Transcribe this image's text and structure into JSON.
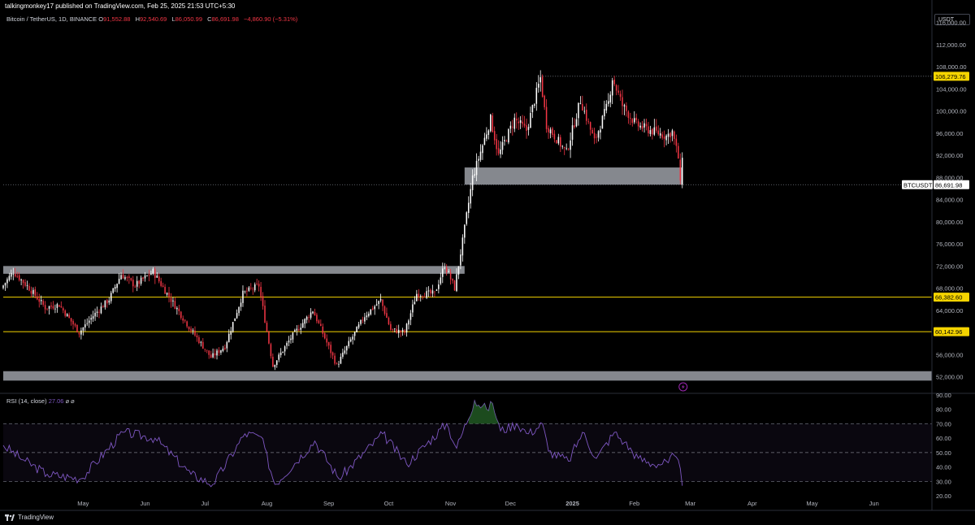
{
  "header": {
    "publisher": "talkingmonkey17 published on TradingView.com, Feb 25, 2025 21:53 UTC+5:30",
    "symbol_desc": "Bitcoin / TetherUS, 1D, BINANCE",
    "ohlc": [
      {
        "k": "O",
        "v": "91,552.88"
      },
      {
        "k": "H",
        "v": "92,540.69"
      },
      {
        "k": "L",
        "v": "86,050.99"
      },
      {
        "k": "C",
        "v": "86,691.98"
      }
    ],
    "change": "−4,860.90 (−5.31%)"
  },
  "currency_button": "USDT",
  "colors": {
    "up": "#ffffff",
    "down": "#f23645",
    "zone": "#b2b5be",
    "level": "#f5d400",
    "rsi": "#7e57c2",
    "rsi_overbought": "#2e7d32",
    "grid_dash": "#434651"
  },
  "price_axis": {
    "ticks": [
      "116,000.00",
      "112,000.00",
      "108,000.00",
      "104,000.00",
      "100,000.00",
      "96,000.00",
      "92,000.00",
      "88,000.00",
      "84,000.00",
      "80,000.00",
      "76,000.00",
      "72,000.00",
      "68,000.00",
      "64,000.00",
      "60,000.00",
      "56,000.00",
      "52,000.00"
    ],
    "tick_values": [
      116000,
      112000,
      108000,
      104000,
      100000,
      96000,
      92000,
      88000,
      84000,
      80000,
      76000,
      72000,
      68000,
      64000,
      60000,
      56000,
      52000
    ],
    "range": [
      49000,
      118000
    ]
  },
  "price_tags": [
    {
      "label": "106,279.76",
      "value": 106279.76,
      "style": "yellow"
    },
    {
      "label": "86,691.98",
      "value": 86691.98,
      "style": "white",
      "symbol": "BTCUSDT"
    },
    {
      "label": "66,382.60",
      "value": 66382.6,
      "style": "yellow"
    },
    {
      "label": "60,142.96",
      "value": 60142.96,
      "style": "yellow"
    }
  ],
  "zones": [
    {
      "from_date": "2024-03-22",
      "to_date": "2024-11-08",
      "low": 70600,
      "high": 72000
    },
    {
      "from_date": "2024-11-08",
      "to_date": "2025-02-25",
      "low": 86700,
      "high": 89800
    },
    {
      "from_date": "2024-03-22",
      "to_date": "2025-06-30",
      "low": 51300,
      "high": 53000
    }
  ],
  "levels": [
    66382.6,
    60142.96
  ],
  "resistance_line": {
    "value": 106279.76,
    "from_date": "2024-12-16"
  },
  "x_axis": {
    "labels": [
      {
        "text": "May",
        "date": "2024-05-01"
      },
      {
        "text": "Jun",
        "date": "2024-06-01"
      },
      {
        "text": "Jul",
        "date": "2024-07-01"
      },
      {
        "text": "Aug",
        "date": "2024-08-01"
      },
      {
        "text": "Sep",
        "date": "2024-09-01"
      },
      {
        "text": "Oct",
        "date": "2024-10-01"
      },
      {
        "text": "Nov",
        "date": "2024-11-01"
      },
      {
        "text": "Dec",
        "date": "2024-12-01"
      },
      {
        "text": "2025",
        "date": "2025-01-01",
        "bold": true
      },
      {
        "text": "Feb",
        "date": "2025-02-01"
      },
      {
        "text": "Mar",
        "date": "2025-03-01"
      },
      {
        "text": "Apr",
        "date": "2025-04-01"
      },
      {
        "text": "May",
        "date": "2025-05-01"
      },
      {
        "text": "Jun",
        "date": "2025-06-01"
      }
    ]
  },
  "chart_data": {
    "type": "candlestick",
    "x_date_range": [
      "2024-03-22",
      "2025-06-30"
    ],
    "anchors": [
      [
        "2024-03-22",
        68000
      ],
      [
        "2024-03-28",
        71000
      ],
      [
        "2024-04-05",
        68000
      ],
      [
        "2024-04-13",
        64500
      ],
      [
        "2024-04-20",
        65000
      ],
      [
        "2024-04-30",
        60000
      ],
      [
        "2024-05-07",
        63000
      ],
      [
        "2024-05-15",
        66000
      ],
      [
        "2024-05-21",
        70500
      ],
      [
        "2024-05-28",
        68500
      ],
      [
        "2024-06-06",
        71000
      ],
      [
        "2024-06-13",
        67000
      ],
      [
        "2024-06-24",
        61000
      ],
      [
        "2024-07-05",
        55500
      ],
      [
        "2024-07-12",
        57500
      ],
      [
        "2024-07-21",
        67000
      ],
      [
        "2024-07-29",
        68500
      ],
      [
        "2024-08-05",
        54000
      ],
      [
        "2024-08-14",
        59000
      ],
      [
        "2024-08-25",
        64000
      ],
      [
        "2024-09-06",
        54000
      ],
      [
        "2024-09-12",
        58000
      ],
      [
        "2024-09-20",
        63000
      ],
      [
        "2024-09-28",
        65800
      ],
      [
        "2024-10-03",
        60500
      ],
      [
        "2024-10-10",
        60000
      ],
      [
        "2024-10-16",
        67000
      ],
      [
        "2024-10-25",
        67000
      ],
      [
        "2024-10-30",
        72200
      ],
      [
        "2024-11-04",
        68000
      ],
      [
        "2024-11-08",
        76500
      ],
      [
        "2024-11-13",
        88000
      ],
      [
        "2024-11-22",
        98500
      ],
      [
        "2024-11-26",
        92000
      ],
      [
        "2024-12-04",
        98500
      ],
      [
        "2024-12-10",
        96500
      ],
      [
        "2024-12-17",
        106000
      ],
      [
        "2024-12-20",
        97500
      ],
      [
        "2024-12-30",
        92500
      ],
      [
        "2025-01-06",
        102000
      ],
      [
        "2025-01-13",
        94500
      ],
      [
        "2025-01-20",
        101500
      ],
      [
        "2025-01-22",
        106000
      ],
      [
        "2025-01-27",
        101000
      ],
      [
        "2025-02-03",
        97500
      ],
      [
        "2025-02-10",
        96500
      ],
      [
        "2025-02-18",
        95500
      ],
      [
        "2025-02-21",
        96300
      ],
      [
        "2025-02-24",
        91550
      ],
      [
        "2025-02-25",
        86692
      ]
    ],
    "last_candle": {
      "date": "2025-02-25",
      "open": 91552.88,
      "high": 92540.69,
      "low": 86050.99,
      "close": 86691.98
    }
  },
  "rsi": {
    "label": "RSI (14, close)",
    "value": "27.06",
    "icons": "⌀ ⌀",
    "ticks": [
      "90.00",
      "80.00",
      "70.00",
      "60.00",
      "50.00",
      "40.00",
      "30.00",
      "20.00"
    ],
    "tick_values": [
      90,
      80,
      70,
      60,
      50,
      40,
      30,
      20
    ],
    "bands": [
      70,
      50,
      30
    ],
    "range": [
      19,
      91
    ],
    "anchors": [
      [
        "2024-03-22",
        55
      ],
      [
        "2024-04-01",
        45
      ],
      [
        "2024-04-13",
        35
      ],
      [
        "2024-04-30",
        32
      ],
      [
        "2024-05-21",
        64
      ],
      [
        "2024-06-06",
        60
      ],
      [
        "2024-06-24",
        35
      ],
      [
        "2024-07-05",
        28
      ],
      [
        "2024-07-21",
        63
      ],
      [
        "2024-07-29",
        61
      ],
      [
        "2024-08-05",
        28
      ],
      [
        "2024-08-25",
        58
      ],
      [
        "2024-09-06",
        32
      ],
      [
        "2024-09-28",
        63
      ],
      [
        "2024-10-10",
        42
      ],
      [
        "2024-10-30",
        70
      ],
      [
        "2024-11-04",
        53
      ],
      [
        "2024-11-13",
        86
      ],
      [
        "2024-11-19",
        80
      ],
      [
        "2024-11-22",
        84
      ],
      [
        "2024-11-26",
        65
      ],
      [
        "2024-12-04",
        70
      ],
      [
        "2024-12-10",
        63
      ],
      [
        "2024-12-17",
        70
      ],
      [
        "2024-12-20",
        51
      ],
      [
        "2024-12-30",
        44
      ],
      [
        "2025-01-06",
        64
      ],
      [
        "2025-01-13",
        46
      ],
      [
        "2025-01-22",
        64
      ],
      [
        "2025-01-27",
        57
      ],
      [
        "2025-02-03",
        46
      ],
      [
        "2025-02-10",
        42
      ],
      [
        "2025-02-18",
        43
      ],
      [
        "2025-02-21",
        48
      ],
      [
        "2025-02-24",
        39
      ],
      [
        "2025-02-25",
        27.06
      ]
    ]
  },
  "footer": {
    "brand": "TradingView"
  }
}
